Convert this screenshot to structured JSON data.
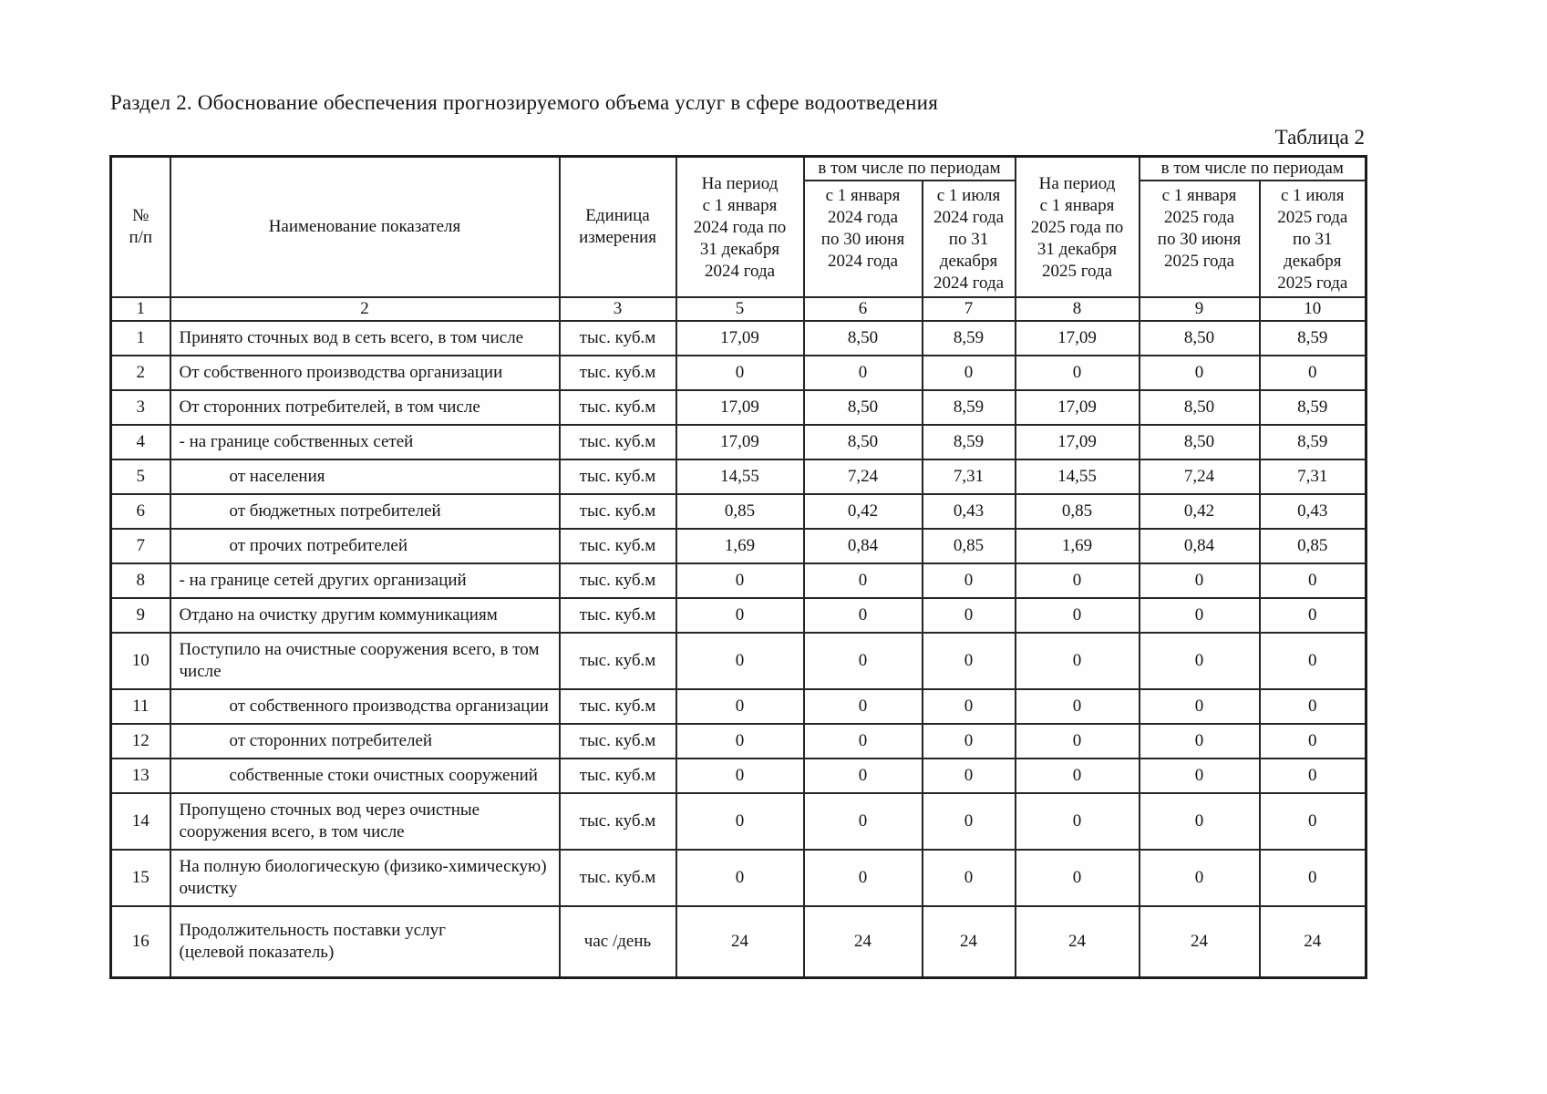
{
  "page": {
    "title": "Раздел 2. Обоснование обеспечения прогнозируемого объема услуг в сфере водоотведения",
    "table_caption": "Таблица 2"
  },
  "table": {
    "headers": {
      "num": "№\nп/п",
      "indicator": "Наименование показателя",
      "unit": "Единица\nизмерения",
      "period_2024": "На период\nс 1 января\n2024 года по\n31 декабря\n2024 года",
      "including_2024": "в том числе по периодам",
      "sub_2024_h1": "с 1 января\n2024 года\nпо 30 июня\n2024 года",
      "sub_2024_h2": "с 1 июля\n2024 года\nпо 31\nдекабря\n2024 года",
      "period_2025": "На период\nс 1 января\n2025 года по\n31 декабря\n2025 года",
      "including_2025": "в том числе по периодам",
      "sub_2025_h1": "с 1 января\n2025 года\nпо 30 июня\n2025 года",
      "sub_2025_h2": "с 1 июля\n2025 года\nпо 31\nдекабря\n2025 года"
    },
    "column_numbers": [
      "1",
      "2",
      "3",
      "5",
      "6",
      "7",
      "8",
      "9",
      "10"
    ],
    "rows": [
      {
        "num": "1",
        "name": "Принято сточных вод в сеть всего, в том числе",
        "indent": false,
        "unit": "тыс. куб.м",
        "values": [
          "17,09",
          "8,50",
          "8,59",
          "17,09",
          "8,50",
          "8,59"
        ]
      },
      {
        "num": "2",
        "name": "От собственного производства организации",
        "indent": false,
        "unit": "тыс. куб.м",
        "values": [
          "0",
          "0",
          "0",
          "0",
          "0",
          "0"
        ]
      },
      {
        "num": "3",
        "name": "От сторонних потребителей, в том числе",
        "indent": false,
        "unit": "тыс. куб.м",
        "values": [
          "17,09",
          "8,50",
          "8,59",
          "17,09",
          "8,50",
          "8,59"
        ]
      },
      {
        "num": "4",
        "name": "- на границе собственных сетей",
        "indent": false,
        "unit": "тыс. куб.м",
        "values": [
          "17,09",
          "8,50",
          "8,59",
          "17,09",
          "8,50",
          "8,59"
        ]
      },
      {
        "num": "5",
        "name": "от населения",
        "indent": true,
        "unit": "тыс. куб.м",
        "values": [
          "14,55",
          "7,24",
          "7,31",
          "14,55",
          "7,24",
          "7,31"
        ]
      },
      {
        "num": "6",
        "name": "от бюджетных потребителей",
        "indent": true,
        "unit": "тыс. куб.м",
        "values": [
          "0,85",
          "0,42",
          "0,43",
          "0,85",
          "0,42",
          "0,43"
        ]
      },
      {
        "num": "7",
        "name": "от прочих потребителей",
        "indent": true,
        "unit": "тыс. куб.м",
        "values": [
          "1,69",
          "0,84",
          "0,85",
          "1,69",
          "0,84",
          "0,85"
        ]
      },
      {
        "num": "8",
        "name": "- на границе сетей других организаций",
        "indent": false,
        "unit": "тыс. куб.м",
        "values": [
          "0",
          "0",
          "0",
          "0",
          "0",
          "0"
        ]
      },
      {
        "num": "9",
        "name": "Отдано на очистку другим коммуникациям",
        "indent": false,
        "unit": "тыс. куб.м",
        "values": [
          "0",
          "0",
          "0",
          "0",
          "0",
          "0"
        ]
      },
      {
        "num": "10",
        "name": "Поступило на очистные сооружения всего, в том\nчисле",
        "indent": false,
        "unit": "тыс. куб.м",
        "values": [
          "0",
          "0",
          "0",
          "0",
          "0",
          "0"
        ]
      },
      {
        "num": "11",
        "name": "от собственного производства организации",
        "indent": true,
        "unit": "тыс. куб.м",
        "values": [
          "0",
          "0",
          "0",
          "0",
          "0",
          "0"
        ]
      },
      {
        "num": "12",
        "name": "от сторонних потребителей",
        "indent": true,
        "unit": "тыс. куб.м",
        "values": [
          "0",
          "0",
          "0",
          "0",
          "0",
          "0"
        ]
      },
      {
        "num": "13",
        "name": "собственные стоки очистных сооружений",
        "indent": true,
        "unit": "тыс. куб.м",
        "values": [
          "0",
          "0",
          "0",
          "0",
          "0",
          "0"
        ]
      },
      {
        "num": "14",
        "name": "Пропущено сточных вод через очистные\nсооружения всего, в том числе",
        "indent": false,
        "unit": "тыс. куб.м",
        "values": [
          "0",
          "0",
          "0",
          "0",
          "0",
          "0"
        ]
      },
      {
        "num": "15",
        "name": "На полную биологическую (физико-химическую)\nочистку",
        "indent": false,
        "unit": "тыс. куб.м",
        "values": [
          "0",
          "0",
          "0",
          "0",
          "0",
          "0"
        ]
      },
      {
        "num": "16",
        "name": "Продолжительность поставки услуг\n(целевой показатель)",
        "indent": false,
        "unit": "час /день",
        "values": [
          "24",
          "24",
          "24",
          "24",
          "24",
          "24"
        ]
      }
    ]
  }
}
